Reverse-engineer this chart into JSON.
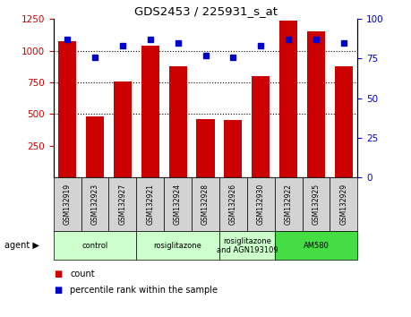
{
  "title": "GDS2453 / 225931_s_at",
  "samples": [
    "GSM132919",
    "GSM132923",
    "GSM132927",
    "GSM132921",
    "GSM132924",
    "GSM132928",
    "GSM132926",
    "GSM132930",
    "GSM132922",
    "GSM132925",
    "GSM132929"
  ],
  "counts": [
    1075,
    480,
    755,
    1040,
    875,
    460,
    455,
    800,
    1240,
    1155,
    875
  ],
  "percentiles": [
    87,
    76,
    83,
    87,
    85,
    77,
    76,
    83,
    87,
    87,
    85
  ],
  "ylim_left": [
    0,
    1250
  ],
  "ylim_right": [
    0,
    100
  ],
  "yticks_left": [
    250,
    500,
    750,
    1000,
    1250
  ],
  "yticks_right": [
    0,
    25,
    50,
    75,
    100
  ],
  "bar_color": "#cc0000",
  "dot_color": "#0000cc",
  "groups": [
    {
      "label": "control",
      "start": 0,
      "end": 2,
      "color": "#ccffcc"
    },
    {
      "label": "rosiglitazone",
      "start": 3,
      "end": 5,
      "color": "#ccffcc"
    },
    {
      "label": "rosiglitazone\nand AGN193109",
      "start": 6,
      "end": 7,
      "color": "#ccffcc"
    },
    {
      "label": "AM580",
      "start": 8,
      "end": 10,
      "color": "#44dd44"
    }
  ],
  "agent_label": "agent",
  "legend_count_label": "count",
  "legend_percentile_label": "percentile rank within the sample",
  "bg_color": "#ffffff",
  "plot_bg_color": "#ffffff",
  "sample_box_color": "#d3d3d3",
  "grid_lines": [
    500,
    750,
    1000
  ]
}
